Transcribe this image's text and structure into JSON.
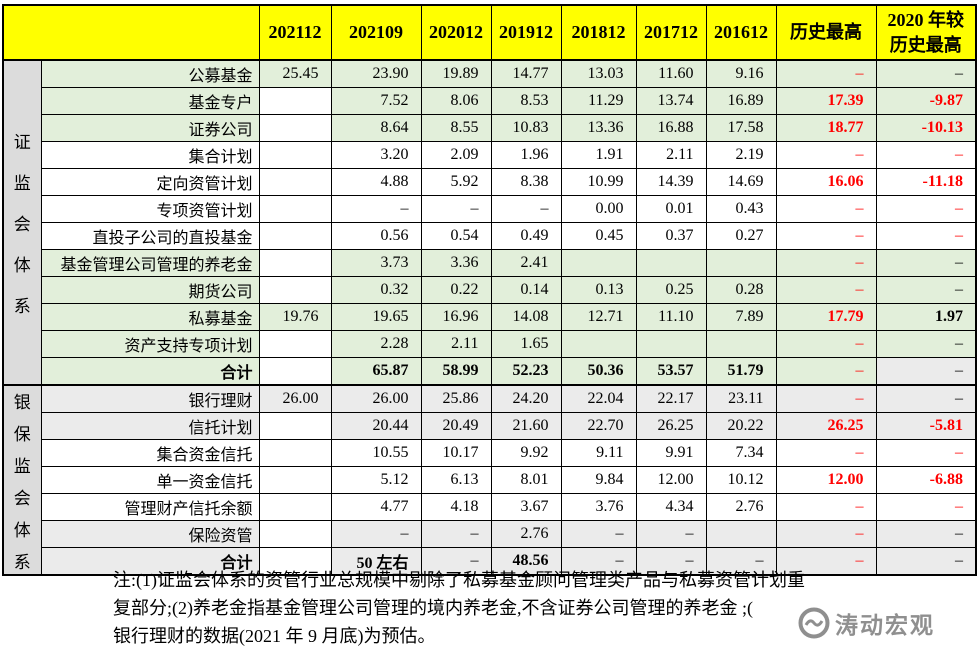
{
  "colors": {
    "header_bg": "#ffff00",
    "green_row": "#e2efda",
    "gray_row": "#ebebeb",
    "group_bg": "#dcdcdc",
    "red": "#ff0000"
  },
  "header": {
    "corner": "",
    "columns": [
      "202112",
      "202109",
      "202012",
      "201912",
      "201812",
      "201712",
      "201612",
      "历史最高",
      "2020 年较\n历史最高"
    ]
  },
  "sections": [
    {
      "group": "证监会体系",
      "char_gap": 16,
      "rows": [
        {
          "label": "公募基金",
          "tint": "green",
          "cells": [
            "25.45",
            "23.90",
            "19.89",
            "14.77",
            "13.03",
            "11.60",
            "9.16",
            [
              "–",
              "red"
            ],
            [
              "–",
              ""
            ]
          ]
        },
        {
          "label": "基金专户",
          "tint": "green",
          "cells": [
            "",
            "7.52",
            "8.06",
            "8.53",
            "11.29",
            "13.74",
            "16.89",
            [
              "17.39",
              "red bold"
            ],
            [
              "-9.87",
              "red bold"
            ]
          ]
        },
        {
          "label": "证券公司",
          "tint": "green",
          "cells": [
            "",
            "8.64",
            "8.55",
            "10.83",
            "13.36",
            "16.88",
            "17.58",
            [
              "18.77",
              "red bold"
            ],
            [
              "-10.13",
              "red bold"
            ]
          ]
        },
        {
          "label": "集合计划",
          "tint": "white",
          "cells": [
            "",
            "3.20",
            "2.09",
            "1.96",
            "1.91",
            "2.11",
            "2.19",
            [
              "–",
              "red"
            ],
            [
              "–",
              "red"
            ]
          ]
        },
        {
          "label": "定向资管计划",
          "tint": "white",
          "cells": [
            "",
            "4.88",
            "5.92",
            "8.38",
            "10.99",
            "14.39",
            "14.69",
            [
              "16.06",
              "red bold"
            ],
            [
              "-11.18",
              "red bold"
            ]
          ]
        },
        {
          "label": "专项资管计划",
          "tint": "white",
          "cells": [
            "",
            "–",
            "–",
            "–",
            "0.00",
            "0.01",
            "0.43",
            [
              "–",
              "red"
            ],
            [
              "–",
              "red"
            ]
          ]
        },
        {
          "label": "直投子公司的直投基金",
          "tint": "white",
          "cells": [
            "",
            "0.56",
            "0.54",
            "0.49",
            "0.45",
            "0.37",
            "0.27",
            [
              "–",
              "red"
            ],
            [
              "–",
              "red"
            ]
          ]
        },
        {
          "label": "基金管理公司管理的养老金",
          "tint": "green",
          "cells": [
            "",
            "3.73",
            "3.36",
            "2.41",
            "",
            "",
            "",
            [
              "–",
              "red"
            ],
            [
              "–",
              ""
            ]
          ]
        },
        {
          "label": "期货公司",
          "tint": "green",
          "cells": [
            "",
            "0.32",
            "0.22",
            "0.14",
            "0.13",
            "0.25",
            "0.28",
            [
              "–",
              "red"
            ],
            [
              "–",
              ""
            ]
          ]
        },
        {
          "label": "私募基金",
          "tint": "green",
          "cells": [
            "19.76",
            "19.65",
            "16.96",
            "14.08",
            "12.71",
            "11.10",
            "7.89",
            [
              "17.79",
              "red bold"
            ],
            [
              "1.97",
              "bold"
            ]
          ]
        },
        {
          "label": "资产支持专项计划",
          "tint": "green",
          "cells": [
            "",
            "2.28",
            "2.11",
            "1.65",
            "",
            "",
            "",
            [
              "–",
              "red"
            ],
            [
              "–",
              ""
            ]
          ]
        },
        {
          "label": "合计",
          "tint": "green",
          "sum": true,
          "cells": [
            "",
            [
              "65.87",
              "bold"
            ],
            [
              "58.99",
              "bold"
            ],
            [
              "52.23",
              "bold"
            ],
            [
              "50.36",
              "bold"
            ],
            [
              "53.57",
              "bold"
            ],
            [
              "51.79",
              "bold"
            ],
            [
              "–",
              "red"
            ],
            [
              "–",
              "bg-gray"
            ]
          ]
        }
      ]
    },
    {
      "group": "银保监会体系",
      "char_gap": 7,
      "rows": [
        {
          "label": "银行理财",
          "tint": "gray",
          "cells": [
            "26.00",
            "26.00",
            "25.86",
            "24.20",
            "22.04",
            "22.17",
            "23.11",
            [
              "–",
              "red"
            ],
            [
              "–",
              ""
            ]
          ]
        },
        {
          "label": "信托计划",
          "tint": "gray",
          "cells": [
            "",
            "20.44",
            "20.49",
            "21.60",
            "22.70",
            "26.25",
            "20.22",
            [
              "26.25",
              "red bold"
            ],
            [
              "-5.81",
              "red bold"
            ]
          ]
        },
        {
          "label": "集合资金信托",
          "tint": "white",
          "cells": [
            "",
            "10.55",
            "10.17",
            "9.92",
            "9.11",
            "9.91",
            "7.34",
            [
              "–",
              "red"
            ],
            [
              "–",
              "red"
            ]
          ]
        },
        {
          "label": "单一资金信托",
          "tint": "white",
          "cells": [
            "",
            "5.12",
            "6.13",
            "8.01",
            "9.84",
            "12.00",
            "10.12",
            [
              "12.00",
              "red bold"
            ],
            [
              "-6.88",
              "red bold"
            ]
          ]
        },
        {
          "label": "管理财产信托余额",
          "tint": "white",
          "cells": [
            "",
            "4.77",
            "4.18",
            "3.67",
            "3.76",
            "4.34",
            "2.76",
            [
              "–",
              "red"
            ],
            [
              "–",
              "red"
            ]
          ]
        },
        {
          "label": "保险资管",
          "tint": "gray",
          "cells": [
            "",
            "–",
            "–",
            "2.76",
            "–",
            "–",
            "",
            [
              "–",
              "red"
            ],
            [
              "–",
              ""
            ]
          ]
        },
        {
          "label": "合计",
          "tint": "gray",
          "sum": true,
          "cells": [
            "",
            [
              "50 左右",
              "bold"
            ],
            "–",
            [
              "48.56",
              "bold"
            ],
            "–",
            "–",
            "–",
            [
              "–",
              "red"
            ],
            [
              "–",
              ""
            ]
          ]
        }
      ]
    }
  ],
  "notes": [
    "注:(1)证监会体系的资管行业总规模中剔除了私募基金顾问管理类产品与私募资管计划重",
    "复部分;(2)养老金指基金管理公司管理的境内养老金,不含证券公司管理的养老金 ;(",
    "银行理财的数据(2021 年 9 月底)为预估。"
  ],
  "watermark": {
    "text": "涛动宏观",
    "logo": "wave-circle-logo"
  }
}
